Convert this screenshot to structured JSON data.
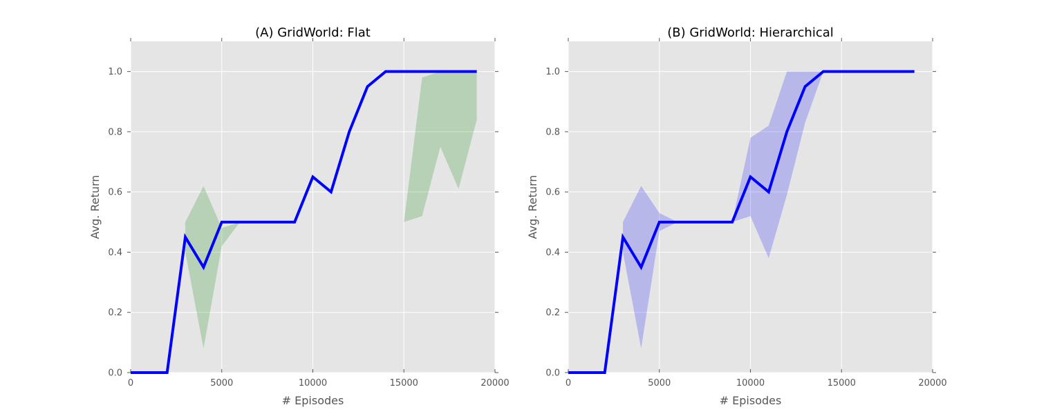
{
  "chart_data": [
    {
      "type": "line",
      "title": "(A) GridWorld: Flat",
      "xlabel": "# Episodes",
      "ylabel": "Avg. Return",
      "xlim": [
        0,
        20000
      ],
      "ylim": [
        0,
        1.1
      ],
      "grid": true,
      "xticks": [
        0,
        5000,
        10000,
        15000,
        20000
      ],
      "xtick_labels": [
        "0",
        "5000",
        "10000",
        "15000",
        "20000"
      ],
      "yticks": [
        0.0,
        0.2,
        0.4,
        0.6,
        0.8,
        1.0
      ],
      "ytick_labels": [
        "0.0",
        "0.2",
        "0.4",
        "0.6",
        "0.8",
        "1.0"
      ],
      "line_color": "#0000ff",
      "band_color": "#008000",
      "series": [
        {
          "x": [
            0,
            1000,
            2000,
            3000,
            4000,
            5000,
            6000,
            7000,
            8000,
            9000,
            10000,
            11000,
            12000,
            13000,
            14000,
            15000,
            16000,
            17000,
            18000,
            19000
          ],
          "y": [
            0,
            0,
            0,
            0.45,
            0.35,
            0.5,
            0.5,
            0.5,
            0.5,
            0.5,
            0.65,
            0.6,
            0.8,
            0.95,
            1.0,
            1.0,
            1.0,
            1.0,
            1.0,
            1.0
          ]
        }
      ],
      "bands": [
        {
          "x": [
            3000,
            4000,
            5000,
            6000
          ],
          "upper": [
            0.5,
            0.62,
            0.48,
            0.5
          ],
          "lower": [
            0.4,
            0.08,
            0.42,
            0.5
          ]
        },
        {
          "x": [
            15000,
            16000,
            17000,
            18000,
            19000
          ],
          "upper": [
            0.5,
            0.98,
            1.0,
            1.0,
            1.0
          ],
          "lower": [
            0.5,
            0.52,
            0.75,
            0.61,
            0.84
          ]
        }
      ]
    },
    {
      "type": "line",
      "title": "(B) GridWorld: Hierarchical",
      "xlabel": "# Episodes",
      "ylabel": "Avg. Return",
      "xlim": [
        0,
        20000
      ],
      "ylim": [
        0,
        1.1
      ],
      "grid": true,
      "xticks": [
        0,
        5000,
        10000,
        15000,
        20000
      ],
      "xtick_labels": [
        "0",
        "5000",
        "10000",
        "15000",
        "20000"
      ],
      "yticks": [
        0.0,
        0.2,
        0.4,
        0.6,
        0.8,
        1.0
      ],
      "ytick_labels": [
        "0.0",
        "0.2",
        "0.4",
        "0.6",
        "0.8",
        "1.0"
      ],
      "line_color": "#0000ff",
      "band_color": "#0000ff",
      "series": [
        {
          "x": [
            0,
            1000,
            2000,
            3000,
            4000,
            5000,
            6000,
            7000,
            8000,
            9000,
            10000,
            11000,
            12000,
            13000,
            14000,
            15000,
            16000,
            17000,
            18000,
            19000
          ],
          "y": [
            0,
            0,
            0,
            0.45,
            0.35,
            0.5,
            0.5,
            0.5,
            0.5,
            0.5,
            0.65,
            0.6,
            0.8,
            0.95,
            1.0,
            1.0,
            1.0,
            1.0,
            1.0,
            1.0
          ]
        }
      ],
      "bands": [
        {
          "x": [
            3000,
            4000,
            5000,
            6000,
            7000,
            8000,
            9000,
            10000,
            11000,
            12000,
            13000,
            14000,
            15000,
            16000,
            17000,
            18000,
            19000
          ],
          "upper": [
            0.5,
            0.62,
            0.53,
            0.5,
            0.5,
            0.5,
            0.5,
            0.78,
            0.82,
            1.0,
            1.0,
            1.0,
            1.0,
            1.0,
            1.0,
            1.0,
            1.0
          ],
          "lower": [
            0.4,
            0.08,
            0.47,
            0.5,
            0.5,
            0.5,
            0.5,
            0.52,
            0.38,
            0.59,
            0.83,
            1.0,
            1.0,
            1.0,
            1.0,
            1.0,
            1.0
          ]
        }
      ]
    }
  ]
}
